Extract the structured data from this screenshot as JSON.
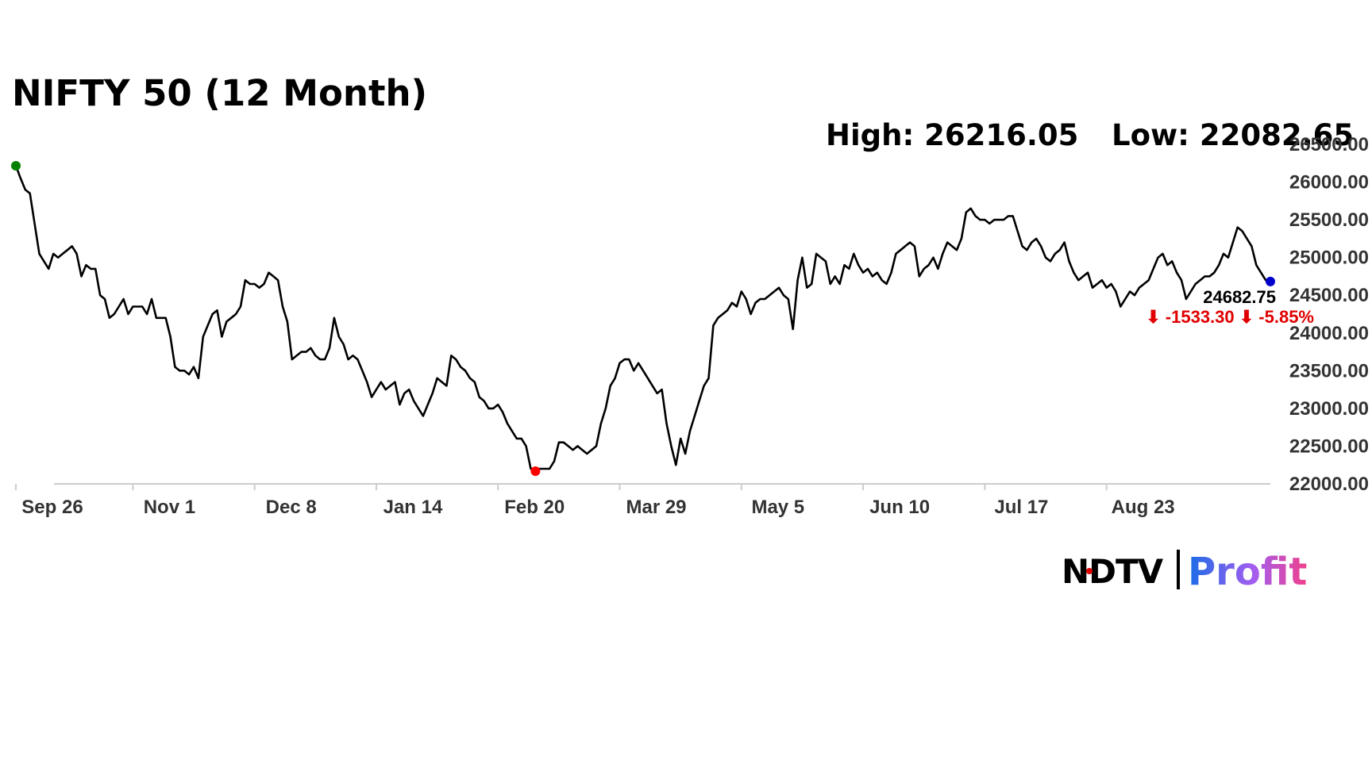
{
  "chart_data": {
    "type": "line",
    "title": "NIFTY 50 (12 Month)",
    "high_text": "High: 26216.05",
    "low_text": "Low: 22082.65",
    "last_value_text": "24682.75",
    "change_text": "⬇ -1533.30 ⬇ -5.85%",
    "ylim": [
      22000,
      26500
    ],
    "y_ticks": [
      "26500.00",
      "26000.00",
      "25500.00",
      "25000.00",
      "24500.00",
      "24000.00",
      "23500.00",
      "23000.00",
      "22500.00",
      "22000.00"
    ],
    "y_tick_values": [
      26500,
      26000,
      25500,
      25000,
      24500,
      24000,
      23500,
      23000,
      22500,
      22000
    ],
    "x_ticks": [
      "Sep 26",
      "Nov 1",
      "Dec 8",
      "Jan 14",
      "Feb 20",
      "Mar 29",
      "May 5",
      "Jun 10",
      "Jul 17",
      "Aug 23"
    ],
    "x_tick_index": [
      0,
      25,
      51,
      77,
      103,
      129,
      155,
      181,
      207,
      233
    ],
    "values": [
      26216,
      26050,
      25900,
      25850,
      25450,
      25050,
      24950,
      24850,
      25050,
      25000,
      25050,
      25100,
      25150,
      25050,
      24750,
      24900,
      24850,
      24850,
      24500,
      24450,
      24200,
      24250,
      24350,
      24450,
      24250,
      24350,
      24350,
      24350,
      24250,
      24450,
      24200,
      24200,
      24200,
      23950,
      23550,
      23500,
      23500,
      23450,
      23550,
      23400,
      23950,
      24100,
      24250,
      24300,
      23950,
      24150,
      24200,
      24250,
      24350,
      24700,
      24650,
      24650,
      24600,
      24650,
      24800,
      24750,
      24700,
      24350,
      24150,
      23650,
      23700,
      23750,
      23750,
      23800,
      23700,
      23650,
      23650,
      23800,
      24200,
      23950,
      23850,
      23650,
      23700,
      23650,
      23500,
      23350,
      23150,
      23250,
      23350,
      23250,
      23300,
      23350,
      23050,
      23200,
      23250,
      23100,
      23000,
      22900,
      23050,
      23200,
      23400,
      23350,
      23300,
      23700,
      23650,
      23550,
      23500,
      23400,
      23350,
      23150,
      23100,
      23000,
      23000,
      23050,
      22950,
      22800,
      22700,
      22600,
      22600,
      22500,
      22200,
      22200,
      22200,
      22200,
      22200,
      22300,
      22550,
      22550,
      22500,
      22450,
      22500,
      22450,
      22400,
      22450,
      22500,
      22800,
      23000,
      23300,
      23400,
      23600,
      23650,
      23650,
      23500,
      23600,
      23500,
      23400,
      23300,
      23200,
      23250,
      22800,
      22500,
      22250,
      22600,
      22400,
      22700,
      22900,
      23100,
      23300,
      23400,
      24100,
      24200,
      24250,
      24300,
      24400,
      24350,
      24550,
      24450,
      24250,
      24400,
      24450,
      24450,
      24500,
      24550,
      24600,
      24500,
      24450,
      24050,
      24700,
      25000,
      24600,
      24650,
      25050,
      25000,
      24950,
      24650,
      24750,
      24650,
      24900,
      24850,
      25050,
      24900,
      24800,
      24850,
      24750,
      24800,
      24700,
      24650,
      24800,
      25050,
      25100,
      25150,
      25200,
      25150,
      24750,
      24850,
      24900,
      25000,
      24850,
      25050,
      25200,
      25150,
      25100,
      25250,
      25600,
      25650,
      25550,
      25500,
      25500,
      25450,
      25500,
      25500,
      25500,
      25550,
      25550,
      25350,
      25150,
      25100,
      25200,
      25250,
      25150,
      25000,
      24950,
      25050,
      25100,
      25200,
      24950,
      24800,
      24700,
      24750,
      24800,
      24600,
      24650,
      24700,
      24600,
      24650,
      24550,
      24350,
      24450,
      24550,
      24500,
      24600,
      24650,
      24700,
      24850,
      25000,
      25050,
      24900,
      24950,
      24800,
      24700,
      24450,
      24550,
      24650,
      24700,
      24750,
      24750,
      24800,
      24900,
      25050,
      25000,
      25200,
      25400,
      25350,
      25250,
      25150,
      24900,
      24800,
      24700,
      24682.75
    ],
    "high_index": 0,
    "low_index": 111,
    "colors": {
      "line": "#000000",
      "high_marker": "#008000",
      "low_marker": "#ff0000",
      "last_marker": "#0000cc",
      "change": "#e00000",
      "axis": "#cccccc"
    },
    "legend": "none",
    "grid": false
  },
  "brand": {
    "ndtv": "NDTV",
    "profit": "Profit"
  }
}
